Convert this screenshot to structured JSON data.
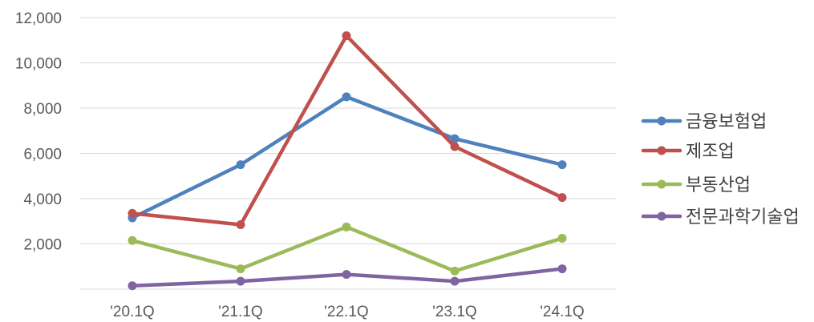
{
  "chart_data": {
    "type": "line",
    "categories": [
      "'20.1Q",
      "'21.1Q",
      "'22.1Q",
      "'23.1Q",
      "'24.1Q"
    ],
    "ylim": [
      0,
      12000
    ],
    "yticks": [
      0,
      2000,
      4000,
      6000,
      8000,
      10000,
      12000
    ],
    "ytick_labels": [
      "",
      "2,000",
      "4,000",
      "6,000",
      "8,000",
      "10,000",
      "12,000"
    ],
    "grid": true,
    "legend_position": "right",
    "series": [
      {
        "name": "금융보험업",
        "color": "#4f81bd",
        "values": [
          3150,
          5500,
          8500,
          6650,
          5500
        ]
      },
      {
        "name": "제조업",
        "color": "#c0504d",
        "values": [
          3350,
          2850,
          11200,
          6300,
          4050
        ]
      },
      {
        "name": "부동산업",
        "color": "#9bbb59",
        "values": [
          2150,
          900,
          2750,
          800,
          2250
        ]
      },
      {
        "name": "전문과학기술업",
        "color": "#8064a2",
        "values": [
          150,
          350,
          650,
          350,
          900
        ]
      }
    ]
  }
}
